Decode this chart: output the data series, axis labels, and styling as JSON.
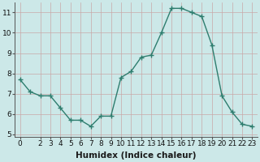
{
  "x": [
    0,
    1,
    2,
    3,
    4,
    5,
    6,
    7,
    8,
    9,
    10,
    11,
    12,
    13,
    14,
    15,
    16,
    17,
    18,
    19,
    20,
    21,
    22,
    23
  ],
  "y": [
    7.7,
    7.1,
    6.9,
    6.9,
    6.3,
    5.7,
    5.7,
    5.4,
    5.9,
    5.9,
    7.8,
    8.1,
    8.8,
    8.9,
    10.0,
    11.2,
    11.2,
    11.0,
    10.8,
    9.4,
    6.9,
    6.1,
    5.5,
    5.4
  ],
  "line_color": "#2e7d6e",
  "marker": "+",
  "marker_size": 4,
  "bg_color": "#cce8e8",
  "grid_color_major": "#c8a8a8",
  "grid_color_minor": "#c8a8a8",
  "xlabel": "Humidex (Indice chaleur)",
  "ylim": [
    4.9,
    11.5
  ],
  "xlim": [
    -0.5,
    23.5
  ],
  "yticks": [
    5,
    6,
    7,
    8,
    9,
    10,
    11
  ],
  "xticks": [
    0,
    2,
    3,
    4,
    5,
    6,
    7,
    8,
    9,
    10,
    11,
    12,
    13,
    14,
    15,
    16,
    17,
    18,
    19,
    20,
    21,
    22,
    23
  ],
  "tick_fontsize": 6.5,
  "xlabel_fontsize": 7.5,
  "linewidth": 1.0,
  "marker_linewidth": 1.0
}
